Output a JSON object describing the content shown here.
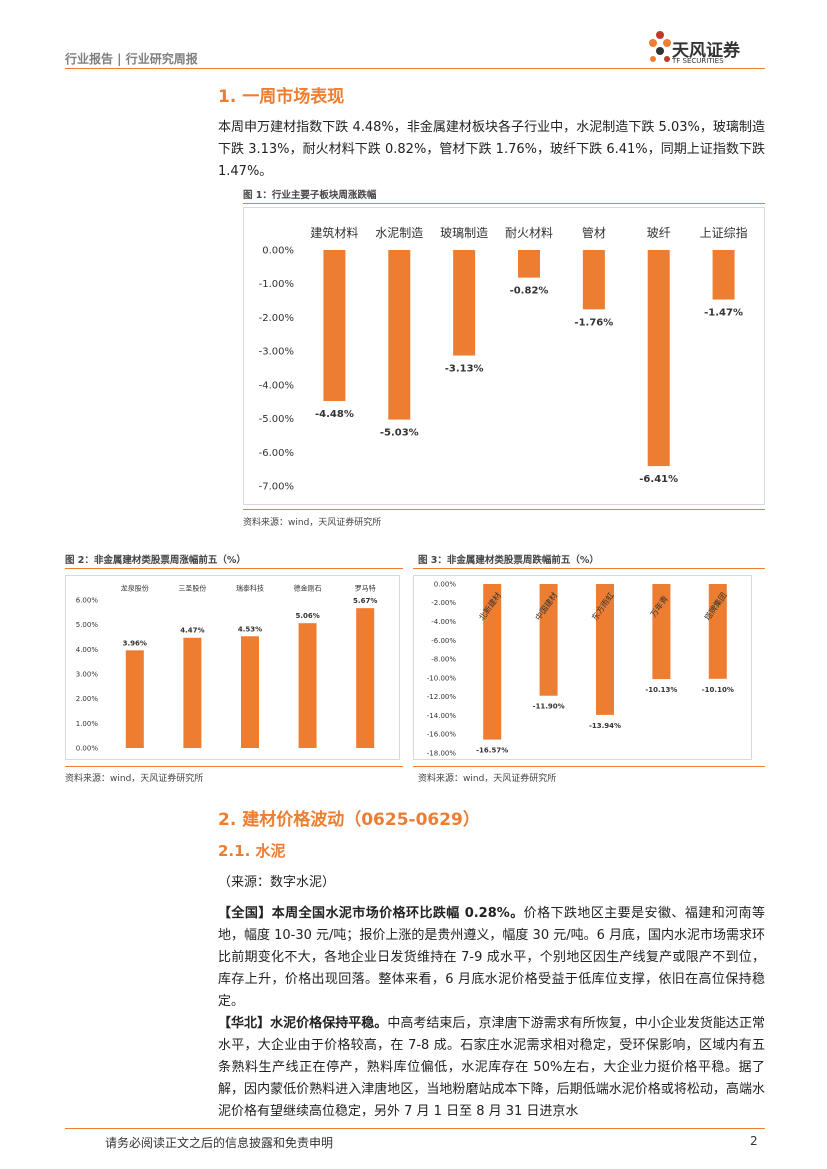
{
  "header": {
    "left": "行业报告 | 行业研究周报",
    "brand": "天风证券",
    "brand_en": "TF SECURITIES"
  },
  "section1": {
    "title": "1. 一周市场表现",
    "paragraph": "本周申万建材指数下跌 4.48%，非金属建材板块各子行业中，水泥制造下跌 5.03%，玻璃制造下跌 3.13%，耐火材料下跌 0.82%，管材下跌 1.76%，玻纤下跌 6.41%，同期上证指数下跌 1.47%。"
  },
  "chart_data": [
    {
      "type": "bar",
      "title": "图 1：行业主要子板块周涨跌幅",
      "source": "资料来源：wind，天风证券研究所",
      "color": "#ed7d31",
      "grid": false,
      "categories": [
        "建筑材料",
        "水泥制造",
        "玻璃制造",
        "耐火材料",
        "管材",
        "玻纤",
        "上证综指"
      ],
      "values": [
        -4.48,
        -5.03,
        -3.13,
        -0.82,
        -1.76,
        -6.41,
        -1.47
      ],
      "value_labels": [
        "-4.48%",
        "-5.03%",
        "-3.13%",
        "-0.82%",
        "-1.76%",
        "-6.41%",
        "-1.47%"
      ],
      "ylim": [
        -7,
        0
      ],
      "yticks": [
        {
          "value": 0,
          "label": "0.00%"
        },
        {
          "value": -1,
          "label": "-1.00%"
        },
        {
          "value": -2,
          "label": "-2.00%"
        },
        {
          "value": -3,
          "label": "-3.00%"
        },
        {
          "value": -4,
          "label": "-4.00%"
        },
        {
          "value": -5,
          "label": "-5.00%"
        },
        {
          "value": -6,
          "label": "-6.00%"
        },
        {
          "value": -7,
          "label": "-7.00%"
        }
      ]
    },
    {
      "type": "bar",
      "title": "图 2：非金属建材类股票周涨幅前五（%）",
      "source": "资料来源：wind，天风证券研究所",
      "color": "#ed7d31",
      "grid": false,
      "categories": [
        "龙泉股份",
        "三圣股份",
        "瑞泰科技",
        "德金刚石",
        "罗马特"
      ],
      "values": [
        3.96,
        4.47,
        4.53,
        5.06,
        5.67
      ],
      "value_labels": [
        "3.96%",
        "4.47%",
        "4.53%",
        "5.06%",
        "5.67%"
      ],
      "ylim": [
        0,
        6
      ],
      "yticks": [
        {
          "value": 0,
          "label": "0.00%"
        },
        {
          "value": 1,
          "label": "1.00%"
        },
        {
          "value": 2,
          "label": "2.00%"
        },
        {
          "value": 3,
          "label": "3.00%"
        },
        {
          "value": 4,
          "label": "4.00%"
        },
        {
          "value": 5,
          "label": "5.00%"
        },
        {
          "value": 6,
          "label": "6.00%"
        }
      ]
    },
    {
      "type": "bar",
      "title": "图 3：非金属建材类股票周跌幅前五（%）",
      "source": "资料来源：wind，天风证券研究所",
      "color": "#ed7d31",
      "grid": false,
      "categories": [
        "北新建材",
        "中国建材",
        "东方雨虹",
        "万年青",
        "塔牌集团"
      ],
      "values": [
        -16.57,
        -11.9,
        -13.94,
        -10.13,
        -10.1
      ],
      "value_labels": [
        "-16.57%",
        "-11.90%",
        "-13.94%",
        "-10.13%",
        "-10.10%"
      ],
      "ylim": [
        -18,
        0
      ],
      "yticks": [
        {
          "value": 0,
          "label": "0.00%"
        },
        {
          "value": -2,
          "label": "-2.00%"
        },
        {
          "value": -4,
          "label": "-4.00%"
        },
        {
          "value": -6,
          "label": "-6.00%"
        },
        {
          "value": -8,
          "label": "-8.00%"
        },
        {
          "value": -10,
          "label": "-10.00%"
        },
        {
          "value": -12,
          "label": "-12.00%"
        },
        {
          "value": -14,
          "label": "-14.00%"
        },
        {
          "value": -16,
          "label": "-16.00%"
        },
        {
          "value": -18,
          "label": "-18.00%"
        }
      ]
    }
  ],
  "section2": {
    "title": "2. 建材价格波动（0625-0629）",
    "subtitle": "2.1. 水泥",
    "source": "（来源：数字水泥）",
    "paragraphs": [
      {
        "lead": "【全国】本周全国水泥市场价格环比跌幅 0.28%。",
        "body": "价格下跌地区主要是安徽、福建和河南等地，幅度 10-30 元/吨；报价上涨的是贵州遵义，幅度 30 元/吨。6 月底，国内水泥市场需求环比前期变化不大，各地企业日发货维持在 7-9 成水平，个别地区因生产线复产或限产不到位，库存上升，价格出现回落。整体来看，6 月底水泥价格受益于低库位支撑，依旧在高位保持稳定。"
      },
      {
        "lead": "【华北】水泥价格保持平稳。",
        "body": "中高考结束后，京津唐下游需求有所恢复，中小企业发货能达正常水平，大企业由于价格较高，在 7-8 成。石家庄水泥需求相对稳定，受环保影响，区域内有五条熟料生产线正在停产，熟料库位偏低，水泥库存在 50%左右，大企业力挺价格平稳。据了解，因内蒙低价熟料进入津唐地区，当地粉磨站成本下降，后期低端水泥价格或将松动，高端水泥价格有望继续高位稳定，另外 7 月 1 日至 8 月 31 日进京水"
      }
    ]
  },
  "footer": {
    "disclaimer": "请务必阅读正文之后的信息披露和免责申明",
    "page": "2"
  }
}
